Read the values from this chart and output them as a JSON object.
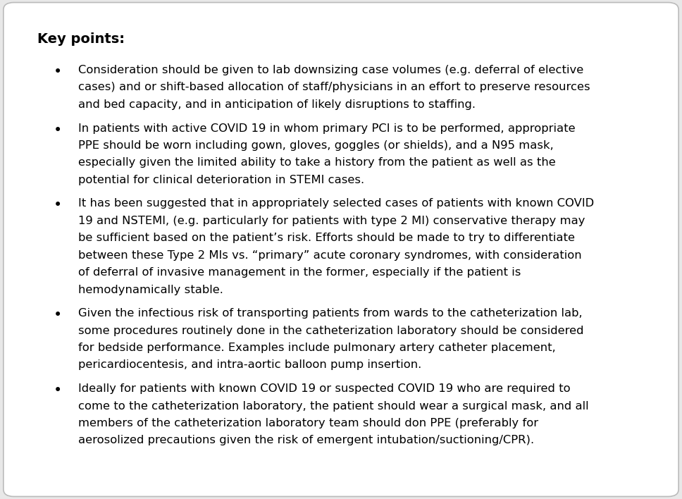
{
  "background_color": "#e8e8e8",
  "box_color": "#ffffff",
  "border_color": "#bbbbbb",
  "title": "Key points:",
  "title_fontsize": 14,
  "title_bold": true,
  "bullet_fontsize": 11.8,
  "text_color": "#000000",
  "bullets": [
    "Consideration should be given to lab downsizing case volumes (e.g. deferral of elective\ncases) and or shift-based allocation of staff/physicians in an effort to preserve resources\nand bed capacity, and in anticipation of likely disruptions to staffing.",
    "In patients with active COVID 19 in whom primary PCI is to be performed, appropriate\nPPE should be worn including gown, gloves, goggles (or shields), and a N95 mask,\nespecially given the limited ability to take a history from the patient as well as the\npotential for clinical deterioration in STEMI cases.",
    "It has been suggested that in appropriately selected cases of patients with known COVID\n19 and NSTEMI, (e.g. particularly for patients with type 2 MI) conservative therapy may\nbe sufficient based on the patient’s risk. Efforts should be made to try to differentiate\nbetween these Type 2 MIs vs. “primary” acute coronary syndromes, with consideration\nof deferral of invasive management in the former, especially if the patient is\nhemodynamically stable.",
    "Given the infectious risk of transporting patients from wards to the catheterization lab,\nsome procedures routinely done in the catheterization laboratory should be considered\nfor bedside performance. Examples include pulmonary artery catheter placement,\npericardiocentesis, and intra-aortic balloon pump insertion.",
    "Ideally for patients with known COVID 19 or suspected COVID 19 who are required to\ncome to the catheterization laboratory, the patient should wear a surgical mask, and all\nmembers of the catheterization laboratory team should don PPE (preferably for\naerosolized precautions given the risk of emergent intubation/suctioning/CPR)."
  ]
}
